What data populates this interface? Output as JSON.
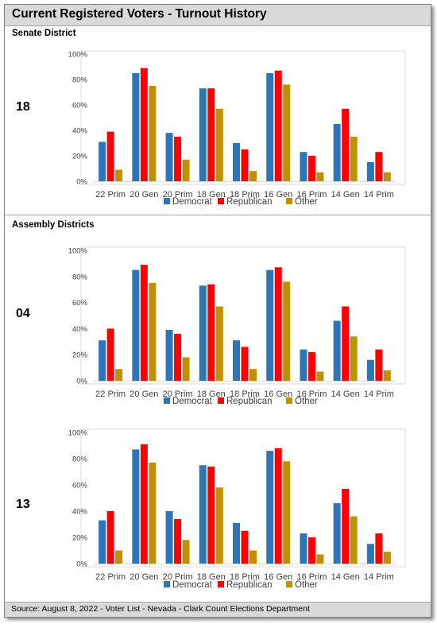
{
  "title": "Current Registered Voters - Turnout History",
  "senate_section_label": "Senate District",
  "assembly_section_label": "Assembly Districts",
  "footer": "Source: August 8, 2022 - Voter List - Nevada - Clark Count Elections Department",
  "colors": {
    "Democrat": "#2e75b6",
    "Republican": "#ff0000",
    "Other": "#bf9000"
  },
  "chart_data": [
    {
      "type": "bar",
      "district": "18",
      "categories": [
        "22 Prim",
        "20 Gen",
        "20 Prim",
        "18 Gen",
        "18 Prim",
        "16 Gen",
        "16 Prim",
        "14 Gen",
        "14 Prim"
      ],
      "series": [
        {
          "name": "Democrat",
          "values": [
            31,
            85,
            38,
            73,
            30,
            85,
            23,
            45,
            15
          ]
        },
        {
          "name": "Republican",
          "values": [
            39,
            89,
            35,
            73,
            25,
            87,
            20,
            57,
            23
          ]
        },
        {
          "name": "Other",
          "values": [
            9,
            75,
            17,
            57,
            8,
            76,
            7,
            35,
            7
          ]
        }
      ],
      "yticks": [
        "0%",
        "20%",
        "40%",
        "60%",
        "80%",
        "100%"
      ],
      "ylim": [
        0,
        100
      ],
      "grid": false,
      "legend": "bottom"
    },
    {
      "type": "bar",
      "district": "04",
      "categories": [
        "22 Prim",
        "20 Gen",
        "20 Prim",
        "18 Gen",
        "18 Prim",
        "16 Gen",
        "16 Prim",
        "14 Gen",
        "14 Prim"
      ],
      "series": [
        {
          "name": "Democrat",
          "values": [
            31,
            85,
            39,
            73,
            31,
            85,
            24,
            46,
            16
          ]
        },
        {
          "name": "Republican",
          "values": [
            40,
            89,
            36,
            74,
            26,
            87,
            22,
            57,
            24
          ]
        },
        {
          "name": "Other",
          "values": [
            9,
            75,
            18,
            57,
            9,
            76,
            7,
            34,
            8
          ]
        }
      ],
      "yticks": [
        "0%",
        "20%",
        "40%",
        "60%",
        "80%",
        "100%"
      ],
      "ylim": [
        0,
        100
      ],
      "grid": false,
      "legend": "bottom"
    },
    {
      "type": "bar",
      "district": "13",
      "categories": [
        "22 Prim",
        "20 Gen",
        "20 Prim",
        "18 Gen",
        "18 Prim",
        "16 Gen",
        "16 Prim",
        "14 Gen",
        "14 Prim"
      ],
      "series": [
        {
          "name": "Democrat",
          "values": [
            33,
            87,
            40,
            75,
            31,
            86,
            23,
            46,
            15
          ]
        },
        {
          "name": "Republican",
          "values": [
            40,
            91,
            34,
            74,
            25,
            88,
            20,
            57,
            23
          ]
        },
        {
          "name": "Other",
          "values": [
            10,
            77,
            18,
            58,
            10,
            78,
            7,
            36,
            9
          ]
        }
      ],
      "yticks": [
        "0%",
        "20%",
        "40%",
        "60%",
        "80%",
        "100%"
      ],
      "ylim": [
        0,
        100
      ],
      "grid": false,
      "legend": "bottom"
    }
  ]
}
